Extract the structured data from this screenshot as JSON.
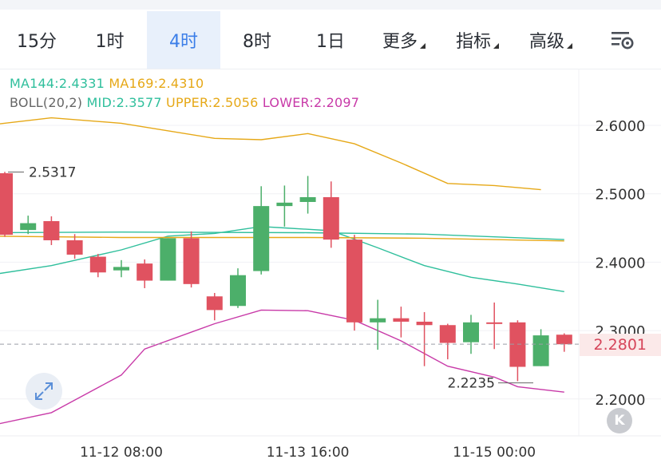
{
  "tabs": [
    {
      "label": "15分",
      "active": false,
      "dropdown": false
    },
    {
      "label": "1时",
      "active": false,
      "dropdown": false
    },
    {
      "label": "4时",
      "active": true,
      "dropdown": false
    },
    {
      "label": "8时",
      "active": false,
      "dropdown": false
    },
    {
      "label": "1日",
      "active": false,
      "dropdown": false
    },
    {
      "label": "更多",
      "active": false,
      "dropdown": true
    },
    {
      "label": "指标",
      "active": false,
      "dropdown": true
    },
    {
      "label": "高级",
      "active": false,
      "dropdown": true
    }
  ],
  "settings_icon": "chart-settings-icon",
  "indicators": {
    "ma144": {
      "label": "MA144:2.4331",
      "color": "#2fbf9c"
    },
    "ma169": {
      "label": "MA169:2.4310",
      "color": "#e6a817"
    },
    "boll_label": {
      "label": "BOLL(20,2)",
      "color": "#666666"
    },
    "mid": {
      "label": "MID:2.3577",
      "color": "#2fbf9c"
    },
    "upper": {
      "label": "UPPER:2.5056",
      "color": "#e6a817"
    },
    "lower": {
      "label": "LOWER:2.2097",
      "color": "#c83aa8"
    }
  },
  "current_price": "2.2801",
  "buttons": {
    "expand_icon": "expand-arrows-icon",
    "k_label": "K"
  },
  "colors": {
    "up": "#4caf6a",
    "down": "#e05260",
    "active_tab": "#3b7ee8"
  },
  "chart_data": {
    "type": "candlestick",
    "interval": "4时",
    "y_ticks": [
      "2.6000",
      "2.5000",
      "2.4000",
      "2.3000",
      "2.2000"
    ],
    "ylim": [
      2.16,
      2.63
    ],
    "x_ticks": [
      {
        "label": "11-12 08:00",
        "index": 5
      },
      {
        "label": "11-13 16:00",
        "index": 13
      },
      {
        "label": "11-15 00:00",
        "index": 21
      }
    ],
    "annotations": [
      {
        "label": "2.5317",
        "index": 0,
        "value": 2.5317
      },
      {
        "label": "2.2235",
        "index": 20,
        "value": 2.2235
      }
    ],
    "candles": [
      {
        "o": 2.53,
        "h": 2.532,
        "c": 2.44,
        "l": 2.437
      },
      {
        "o": 2.447,
        "h": 2.468,
        "c": 2.457,
        "l": 2.441
      },
      {
        "o": 2.46,
        "h": 2.467,
        "c": 2.432,
        "l": 2.425
      },
      {
        "o": 2.432,
        "h": 2.441,
        "c": 2.411,
        "l": 2.405
      },
      {
        "o": 2.408,
        "h": 2.412,
        "c": 2.385,
        "l": 2.378
      },
      {
        "o": 2.388,
        "h": 2.403,
        "c": 2.393,
        "l": 2.378
      },
      {
        "o": 2.398,
        "h": 2.404,
        "c": 2.373,
        "l": 2.362
      },
      {
        "o": 2.373,
        "h": 2.435,
        "c": 2.435,
        "l": 2.373
      },
      {
        "o": 2.435,
        "h": 2.445,
        "c": 2.368,
        "l": 2.363
      },
      {
        "o": 2.35,
        "h": 2.355,
        "c": 2.33,
        "l": 2.315
      },
      {
        "o": 2.336,
        "h": 2.391,
        "c": 2.381,
        "l": 2.333
      },
      {
        "o": 2.387,
        "h": 2.511,
        "c": 2.482,
        "l": 2.382
      },
      {
        "o": 2.482,
        "h": 2.512,
        "c": 2.487,
        "l": 2.452
      },
      {
        "o": 2.488,
        "h": 2.526,
        "c": 2.495,
        "l": 2.471
      },
      {
        "o": 2.495,
        "h": 2.518,
        "c": 2.433,
        "l": 2.421
      },
      {
        "o": 2.433,
        "h": 2.44,
        "c": 2.312,
        "l": 2.3
      },
      {
        "o": 2.312,
        "h": 2.345,
        "c": 2.318,
        "l": 2.272
      },
      {
        "o": 2.318,
        "h": 2.335,
        "c": 2.313,
        "l": 2.29
      },
      {
        "o": 2.313,
        "h": 2.327,
        "c": 2.308,
        "l": 2.248
      },
      {
        "o": 2.308,
        "h": 2.31,
        "c": 2.282,
        "l": 2.258
      },
      {
        "o": 2.283,
        "h": 2.323,
        "c": 2.312,
        "l": 2.266
      },
      {
        "o": 2.312,
        "h": 2.341,
        "c": 2.31,
        "l": 2.273
      },
      {
        "o": 2.312,
        "h": 2.315,
        "c": 2.247,
        "l": 2.226
      },
      {
        "o": 2.248,
        "h": 2.302,
        "c": 2.293,
        "l": 2.248
      },
      {
        "o": 2.294,
        "h": 2.296,
        "c": 2.28,
        "l": 2.269
      }
    ],
    "series": [
      {
        "indicator": "UPPER",
        "color": "#e6a817",
        "points": [
          [
            -0.5,
            2.601
          ],
          [
            2,
            2.611
          ],
          [
            5,
            2.603
          ],
          [
            9,
            2.581
          ],
          [
            11,
            2.579
          ],
          [
            13,
            2.588
          ],
          [
            15,
            2.573
          ],
          [
            17,
            2.545
          ],
          [
            19,
            2.515
          ],
          [
            21,
            2.512
          ],
          [
            23,
            2.506
          ]
        ]
      },
      {
        "indicator": "MID",
        "color": "#2fbf9c",
        "points": [
          [
            -0.5,
            2.382
          ],
          [
            2,
            2.395
          ],
          [
            5,
            2.418
          ],
          [
            7,
            2.438
          ],
          [
            9,
            2.442
          ],
          [
            11,
            2.452
          ],
          [
            12,
            2.45
          ],
          [
            14,
            2.446
          ],
          [
            16,
            2.421
          ],
          [
            18,
            2.395
          ],
          [
            20,
            2.378
          ],
          [
            22,
            2.368
          ],
          [
            24,
            2.357
          ]
        ]
      },
      {
        "indicator": "LOWER",
        "color": "#c83aa8",
        "points": [
          [
            -0.5,
            2.162
          ],
          [
            2,
            2.18
          ],
          [
            5,
            2.235
          ],
          [
            6,
            2.273
          ],
          [
            9,
            2.31
          ],
          [
            11,
            2.33
          ],
          [
            13,
            2.329
          ],
          [
            15,
            2.315
          ],
          [
            17,
            2.285
          ],
          [
            19,
            2.248
          ],
          [
            21,
            2.232
          ],
          [
            22,
            2.218
          ],
          [
            24,
            2.21
          ]
        ]
      },
      {
        "indicator": "MA144",
        "color": "#2fbf9c",
        "points": [
          [
            -0.5,
            2.443
          ],
          [
            5,
            2.444
          ],
          [
            13,
            2.443
          ],
          [
            18,
            2.441
          ],
          [
            24,
            2.433
          ]
        ]
      },
      {
        "indicator": "MA169",
        "color": "#e6a817",
        "points": [
          [
            -0.5,
            2.438
          ],
          [
            5,
            2.436
          ],
          [
            13,
            2.436
          ],
          [
            18,
            2.435
          ],
          [
            24,
            2.431
          ]
        ]
      }
    ]
  }
}
